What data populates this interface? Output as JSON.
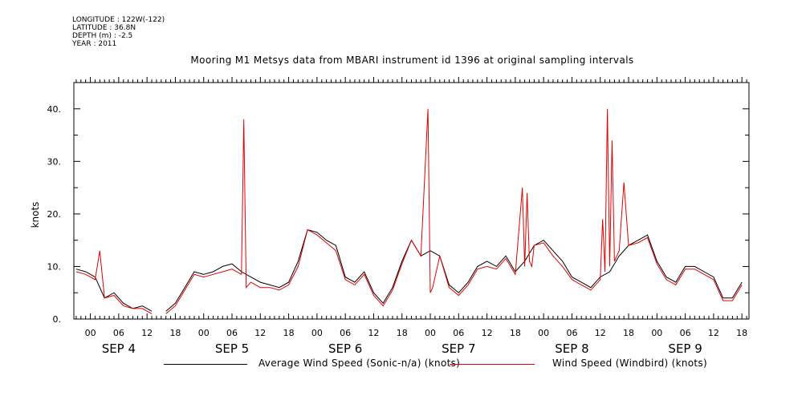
{
  "meta": {
    "longitude": "LONGITUDE : 122W(-122)",
    "latitude": "LATITUDE : 36.8N",
    "depth": "DEPTH (m) : -2.5",
    "year": "YEAR : 2011"
  },
  "chart_data": {
    "type": "line",
    "title": "Mooring M1 Metsys data from MBARI instrument id 1396 at original sampling intervals",
    "xlabel": "",
    "ylabel": "knots",
    "ylim": [
      0,
      45
    ],
    "xlim_hours": [
      -3.5,
      139.5
    ],
    "x_unit": "hours from SEP 4 00:00, 2011",
    "yticks": [
      0,
      10,
      20,
      30,
      40
    ],
    "ytick_labels": [
      "0.",
      "10.",
      "20.",
      "30.",
      "40."
    ],
    "xtick_labels": [
      "00",
      "06",
      "12",
      "18",
      "00",
      "06",
      "12",
      "18",
      "00",
      "06",
      "12",
      "18",
      "00",
      "06",
      "12",
      "18",
      "00",
      "06",
      "12",
      "18",
      "00",
      "06",
      "12",
      "18"
    ],
    "day_labels": [
      "SEP 4",
      "SEP 5",
      "SEP 6",
      "SEP 7",
      "SEP 8",
      "SEP 9"
    ],
    "grid": false,
    "legend_position": "bottom",
    "series": [
      {
        "name": "Average Wind Speed (Sonic-n/a) (knots)",
        "color": "#000000",
        "x": [
          -3,
          -1,
          1,
          3,
          5,
          7,
          9,
          11,
          13,
          16,
          18,
          20,
          22,
          24,
          26,
          28,
          30,
          32,
          34,
          36,
          38,
          40,
          42,
          44,
          46,
          48,
          50,
          52,
          54,
          56,
          58,
          60,
          62,
          64,
          66,
          68,
          70,
          72,
          74,
          76,
          78,
          80,
          82,
          84,
          86,
          88,
          90,
          92,
          94,
          96,
          98,
          100,
          102,
          104,
          106,
          108,
          110,
          112,
          114,
          116,
          118,
          120,
          122,
          124,
          126,
          128,
          130,
          132,
          134,
          136,
          138
        ],
        "y": [
          9.5,
          9,
          8,
          4,
          5,
          3,
          2,
          2.5,
          1.5,
          1.5,
          3,
          6,
          9,
          8.5,
          9,
          10,
          10.5,
          9,
          8,
          7,
          6.5,
          6,
          7,
          11,
          17,
          16.5,
          15,
          14,
          8,
          7,
          9,
          5,
          3,
          6,
          11,
          15,
          12,
          13,
          12,
          6.5,
          5,
          7,
          10,
          11,
          10,
          12,
          9,
          11,
          14,
          15,
          13,
          11,
          8,
          7,
          6,
          8,
          9,
          12,
          14,
          15,
          16,
          11,
          8,
          7,
          10,
          10,
          9,
          8,
          4,
          4,
          7
        ]
      },
      {
        "name": "Wind Speed (Windbird) (knots)",
        "color": "#e00000",
        "x": [
          -3,
          -1,
          1,
          2,
          3,
          5,
          7,
          9,
          11,
          13,
          16,
          18,
          20,
          22,
          24,
          26,
          28,
          30,
          32,
          32.5,
          33,
          34,
          36,
          38,
          40,
          42,
          44,
          46,
          48,
          50,
          52,
          54,
          56,
          58,
          60,
          62,
          64,
          66,
          68,
          70,
          71.5,
          72,
          72.5,
          74,
          76,
          78,
          80,
          82,
          84,
          86,
          88,
          90,
          91.5,
          92,
          92.5,
          93,
          93.5,
          94,
          96,
          98,
          100,
          102,
          104,
          106,
          108,
          108.5,
          109,
          109.5,
          110,
          110.5,
          111,
          112,
          113,
          114,
          116,
          118,
          120,
          122,
          124,
          126,
          128,
          130,
          132,
          134,
          136,
          138
        ],
        "y": [
          9,
          8.5,
          7.5,
          13,
          4,
          4.5,
          2.5,
          2,
          2,
          1,
          1,
          2.5,
          5.5,
          8.5,
          8,
          8.5,
          9,
          9.5,
          8.5,
          38,
          6,
          7,
          6,
          6,
          5.5,
          6.5,
          10,
          17,
          16,
          14.5,
          13,
          7.5,
          6.5,
          8.5,
          4.5,
          2.5,
          5.5,
          10.5,
          15,
          12,
          40,
          5,
          6,
          12,
          6,
          4.5,
          6.5,
          9.5,
          10,
          9.5,
          11.5,
          8.5,
          25,
          10,
          24,
          11,
          10,
          14,
          14.5,
          12,
          10,
          7.5,
          6.5,
          5.5,
          7.5,
          19,
          9,
          40,
          10,
          34,
          11,
          13,
          26,
          14,
          14.5,
          15.5,
          10.5,
          7.5,
          6.5,
          9.5,
          9.5,
          8.5,
          7.5,
          3.5,
          3.5,
          6.5
        ]
      }
    ]
  }
}
